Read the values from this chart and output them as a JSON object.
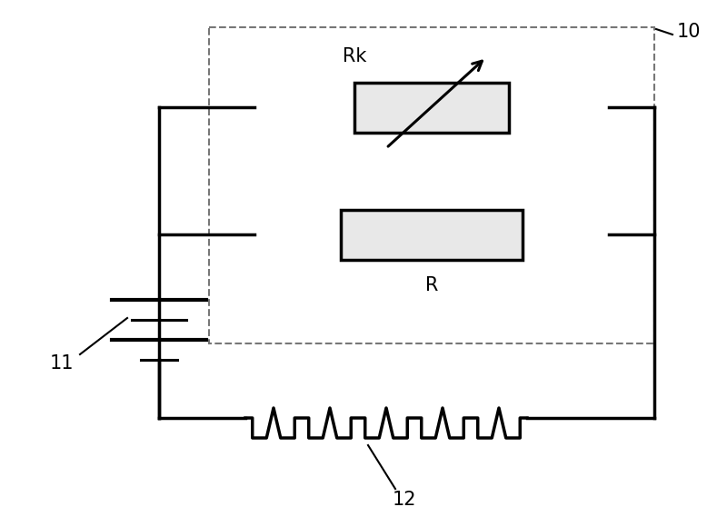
{
  "background_color": "#ffffff",
  "line_color": "#000000",
  "lw_main": 2.5,
  "lw_thin": 1.5,
  "dashed_color": "#777777",
  "resistor_fill": "#e8e8e8",
  "label_10": {
    "text": "10",
    "fontsize": 15
  },
  "label_11": {
    "text": "11",
    "fontsize": 15
  },
  "label_12": {
    "text": "12",
    "fontsize": 15
  },
  "label_Rk": {
    "text": "Rk",
    "fontsize": 15
  },
  "label_R": {
    "text": "R",
    "fontsize": 15
  }
}
